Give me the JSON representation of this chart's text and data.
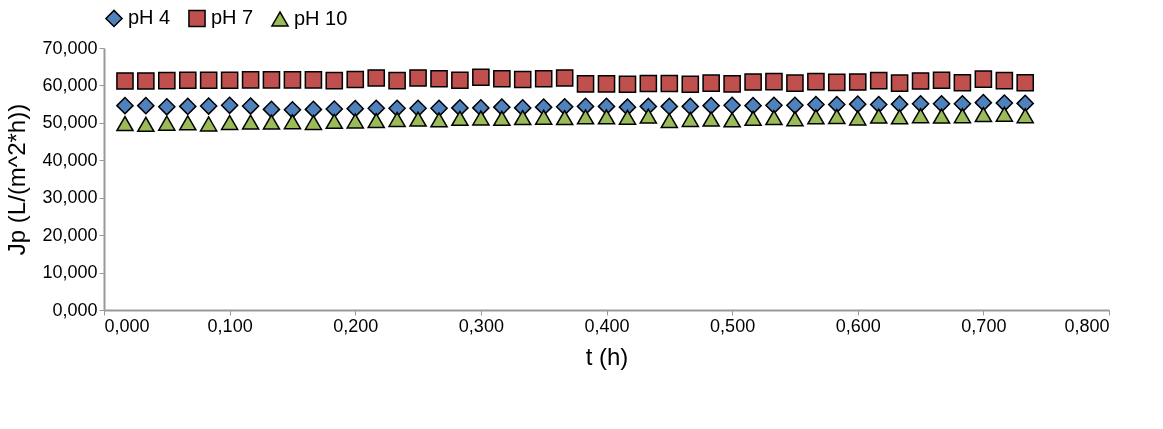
{
  "chart_data": {
    "type": "scatter",
    "xlabel": "t (h)",
    "ylabel": "Jp (L/(m^2*h))",
    "legend": "top",
    "grid": false,
    "x": [
      0.0167,
      0.0333,
      0.05,
      0.0667,
      0.0833,
      0.1,
      0.1167,
      0.1333,
      0.15,
      0.1667,
      0.1833,
      0.2,
      0.2167,
      0.2333,
      0.25,
      0.2667,
      0.2833,
      0.3,
      0.3167,
      0.3333,
      0.35,
      0.3667,
      0.3833,
      0.4,
      0.4167,
      0.4333,
      0.45,
      0.4667,
      0.4833,
      0.5,
      0.5167,
      0.5333,
      0.55,
      0.5667,
      0.5833,
      0.6,
      0.6167,
      0.6333,
      0.65,
      0.6667,
      0.6833,
      0.7,
      0.7167,
      0.7333
    ],
    "xlim": [
      0,
      0.8
    ],
    "xticks": [
      {
        "value": 0,
        "label": "0,000"
      },
      {
        "value": 0.1,
        "label": "0,100"
      },
      {
        "value": 0.2,
        "label": "0,200"
      },
      {
        "value": 0.3,
        "label": "0,300"
      },
      {
        "value": 0.4,
        "label": "0,400"
      },
      {
        "value": 0.5,
        "label": "0,500"
      },
      {
        "value": 0.6,
        "label": "0,600"
      },
      {
        "value": 0.7,
        "label": "0,700"
      },
      {
        "value": 0.8,
        "label": "0,800"
      }
    ],
    "ylim": [
      0,
      70
    ],
    "yticks": [
      {
        "value": 0,
        "label": "0,000"
      },
      {
        "value": 10,
        "label": "10,000"
      },
      {
        "value": 20,
        "label": "20,000"
      },
      {
        "value": 30,
        "label": "30,000"
      },
      {
        "value": 40,
        "label": "40,000"
      },
      {
        "value": 50,
        "label": "50,000"
      },
      {
        "value": 60,
        "label": "60,000"
      },
      {
        "value": 70,
        "label": "70,000"
      }
    ],
    "series": [
      {
        "name": "pH 4",
        "color": "#4f81bd",
        "marker": "diamond",
        "values": [
          54.6,
          54.6,
          54.3,
          54.4,
          54.5,
          54.7,
          54.5,
          53.6,
          53.5,
          53.6,
          53.7,
          53.8,
          53.9,
          53.9,
          53.9,
          53.9,
          54.0,
          54.0,
          54.2,
          54.0,
          54.2,
          54.3,
          54.4,
          54.4,
          54.2,
          54.4,
          54.4,
          54.4,
          54.6,
          54.7,
          54.6,
          54.7,
          54.7,
          54.9,
          54.9,
          55.0,
          54.9,
          55.0,
          55.1,
          55.1,
          55.1,
          55.4,
          55.3,
          55.2
        ]
      },
      {
        "name": "pH 7",
        "color": "#c0504d",
        "marker": "square",
        "values": [
          61.2,
          61.2,
          61.3,
          61.4,
          61.4,
          61.4,
          61.5,
          61.5,
          61.5,
          61.5,
          61.3,
          61.6,
          62.0,
          61.3,
          62.0,
          61.8,
          61.4,
          62.2,
          61.8,
          61.6,
          61.8,
          62.0,
          60.4,
          60.4,
          60.3,
          60.5,
          60.5,
          60.3,
          60.6,
          60.4,
          60.9,
          61.0,
          60.6,
          61.0,
          60.8,
          60.9,
          61.3,
          60.6,
          61.2,
          61.4,
          60.7,
          61.7,
          61.3,
          60.7
        ]
      },
      {
        "name": "pH 10",
        "color": "#9bbb59",
        "marker": "triangle",
        "values": [
          49.8,
          49.6,
          49.9,
          50.0,
          49.7,
          50.1,
          50.2,
          50.2,
          50.3,
          50.1,
          50.4,
          50.5,
          50.6,
          50.9,
          51.0,
          50.8,
          51.2,
          51.3,
          51.2,
          51.4,
          51.5,
          51.4,
          51.6,
          51.6,
          51.5,
          51.8,
          50.6,
          50.9,
          51.0,
          50.8,
          51.2,
          51.4,
          51.1,
          51.6,
          51.7,
          51.3,
          51.8,
          51.6,
          51.9,
          51.8,
          51.9,
          52.2,
          52.3,
          51.9
        ]
      }
    ]
  }
}
